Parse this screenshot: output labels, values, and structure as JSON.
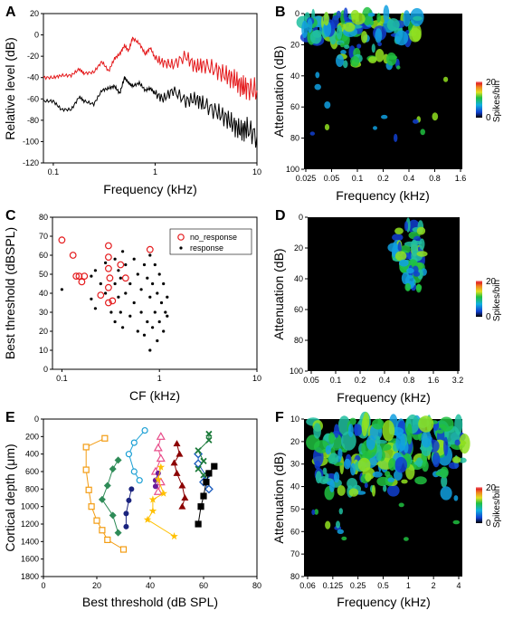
{
  "panels": {
    "A": {
      "label": "A",
      "ylabel": "Relative level  (dB)",
      "xlabel": "Frequency  (kHz)",
      "yticks": [
        "20",
        "0",
        "-20",
        "-40",
        "-60",
        "-80",
        "-100",
        "-120"
      ],
      "xticks": [
        "0.1",
        "1",
        "10"
      ]
    },
    "B": {
      "label": "B",
      "ylabel": "Attenuation (dB)",
      "xlabel": "Frequency  (kHz)",
      "yticks": [
        "0",
        "20",
        "40",
        "60",
        "80",
        "100"
      ],
      "xticks": [
        "0.025",
        "0.05",
        "0.1",
        "0.2",
        "0.4",
        "0.8",
        "1.6"
      ]
    },
    "C": {
      "label": "C",
      "ylabel": "Best threshold (dBSPL)",
      "xlabel": "CF (kHz)",
      "yticks": [
        "80",
        "70",
        "60",
        "50",
        "40",
        "30",
        "20",
        "10",
        "0"
      ],
      "xticks": [
        "0.1",
        "1",
        "10"
      ],
      "legend": {
        "no_response": "no_response",
        "response": "response"
      }
    },
    "D": {
      "label": "D",
      "ylabel": "Attenuation (dB)",
      "xlabel": "Frequency (kHz)",
      "yticks": [
        "0",
        "20",
        "40",
        "60",
        "80",
        "100"
      ],
      "xticks": [
        "0.05",
        "0.1",
        "0.2",
        "0.4",
        "0.8",
        "1.6",
        "3.2"
      ]
    },
    "E": {
      "label": "E",
      "ylabel": "Cortical depth (μm)",
      "xlabel": "Best threshold (dB SPL)",
      "yticks": [
        "0",
        "200",
        "400",
        "600",
        "800",
        "1000",
        "1200",
        "1400",
        "1600",
        "1800"
      ],
      "xticks": [
        "0",
        "20",
        "40",
        "60",
        "80"
      ]
    },
    "F": {
      "label": "F",
      "ylabel": "Attenuation (dB)",
      "xlabel": "Frequency (kHz)",
      "yticks": [
        "10",
        "20",
        "30",
        "40",
        "50",
        "60",
        "70",
        "80"
      ],
      "xticks": [
        "0.06",
        "0.125",
        "0.25",
        "0.5",
        "1",
        "2",
        "4"
      ]
    }
  },
  "colorbar": {
    "max": "20",
    "min": "0",
    "label": "Spikes/bin"
  },
  "colors": {
    "red_trace": "#e41a1c",
    "black_trace": "#000000",
    "heat_bg": "#000000"
  },
  "chart_data": [
    {
      "type": "line",
      "panel": "A",
      "xscale": "log",
      "xlim": [
        0.08,
        10
      ],
      "ylim": [
        -120,
        20
      ],
      "x": [
        0.08,
        0.1,
        0.12,
        0.15,
        0.18,
        0.2,
        0.25,
        0.3,
        0.35,
        0.4,
        0.45,
        0.5,
        0.55,
        0.6,
        0.7,
        0.8,
        0.9,
        1,
        1.2,
        1.5,
        2,
        2.5,
        3,
        4,
        5,
        6,
        7,
        8,
        10
      ],
      "series": [
        {
          "color": "red",
          "values": [
            -40,
            -40,
            -38,
            -38,
            -32,
            -36,
            -35,
            -25,
            -34,
            -22,
            -18,
            -10,
            -15,
            -3,
            -8,
            -18,
            -12,
            -22,
            -26,
            -28,
            -20,
            -30,
            -28,
            -33,
            -38,
            -42,
            -48,
            -50,
            -52
          ]
        },
        {
          "color": "black",
          "values": [
            -62,
            -62,
            -70,
            -70,
            -58,
            -62,
            -65,
            -52,
            -50,
            -48,
            -55,
            -40,
            -45,
            -48,
            -45,
            -52,
            -50,
            -55,
            -60,
            -52,
            -62,
            -60,
            -65,
            -72,
            -78,
            -85,
            -90,
            -88,
            -95
          ]
        }
      ]
    },
    {
      "type": "heatmap",
      "panel": "B",
      "xlabel": "Frequency  (kHz)",
      "ylabel": "Attenuation (dB)",
      "scale": [
        0,
        20
      ]
    },
    {
      "type": "scatter",
      "panel": "C",
      "xscale": "log",
      "xlim": [
        0.08,
        10
      ],
      "ylim": [
        0,
        80
      ],
      "series": [
        {
          "name": "no_response",
          "marker": "open-circle",
          "points": [
            [
              0.1,
              68
            ],
            [
              0.13,
              60
            ],
            [
              0.14,
              49
            ],
            [
              0.16,
              46
            ],
            [
              0.17,
              49
            ],
            [
              0.15,
              49
            ],
            [
              0.3,
              65
            ],
            [
              0.3,
              59
            ],
            [
              0.3,
              53
            ],
            [
              0.31,
              48
            ],
            [
              0.3,
              43
            ],
            [
              0.3,
              35
            ],
            [
              0.33,
              36
            ],
            [
              0.25,
              39
            ],
            [
              0.4,
              55
            ],
            [
              0.45,
              48
            ],
            [
              0.8,
              63
            ]
          ]
        },
        {
          "name": "response",
          "marker": "dot",
          "points": [
            [
              0.1,
              42
            ],
            [
              0.2,
              49
            ],
            [
              0.2,
              37
            ],
            [
              0.22,
              52
            ],
            [
              0.22,
              32
            ],
            [
              0.25,
              45
            ],
            [
              0.28,
              56
            ],
            [
              0.28,
              40
            ],
            [
              0.32,
              30
            ],
            [
              0.35,
              58
            ],
            [
              0.35,
              45
            ],
            [
              0.35,
              25
            ],
            [
              0.38,
              52
            ],
            [
              0.38,
              38
            ],
            [
              0.4,
              48
            ],
            [
              0.4,
              30
            ],
            [
              0.42,
              62
            ],
            [
              0.42,
              22
            ],
            [
              0.45,
              55
            ],
            [
              0.45,
              40
            ],
            [
              0.5,
              45
            ],
            [
              0.5,
              28
            ],
            [
              0.55,
              58
            ],
            [
              0.55,
              35
            ],
            [
              0.6,
              50
            ],
            [
              0.6,
              20
            ],
            [
              0.65,
              42
            ],
            [
              0.65,
              30
            ],
            [
              0.7,
              55
            ],
            [
              0.7,
              18
            ],
            [
              0.75,
              48
            ],
            [
              0.75,
              25
            ],
            [
              0.8,
              60
            ],
            [
              0.8,
              38
            ],
            [
              0.8,
              10
            ],
            [
              0.85,
              45
            ],
            [
              0.85,
              22
            ],
            [
              0.9,
              55
            ],
            [
              0.9,
              30
            ],
            [
              0.95,
              40
            ],
            [
              0.95,
              15
            ],
            [
              1.0,
              50
            ],
            [
              1.0,
              25
            ],
            [
              1.05,
              35
            ],
            [
              1.1,
              45
            ],
            [
              1.1,
              20
            ],
            [
              1.15,
              30
            ],
            [
              1.2,
              38
            ],
            [
              1.2,
              28
            ]
          ]
        }
      ]
    },
    {
      "type": "heatmap",
      "panel": "D",
      "xlabel": "Frequency (kHz)",
      "ylabel": "Attenuation (dB)",
      "scale": [
        0,
        20
      ]
    },
    {
      "type": "line",
      "panel": "E",
      "xlim": [
        0,
        80
      ],
      "ylim": [
        1800,
        0
      ],
      "series": [
        {
          "color": "#f39c12",
          "marker": "square",
          "points": [
            [
              23,
              220
            ],
            [
              16,
              320
            ],
            [
              16,
              580
            ],
            [
              17,
              810
            ],
            [
              18,
              1000
            ],
            [
              20,
              1160
            ],
            [
              22,
              1270
            ],
            [
              24,
              1380
            ],
            [
              30,
              1490
            ]
          ]
        },
        {
          "color": "#2e8b57",
          "marker": "diamond",
          "points": [
            [
              28,
              470
            ],
            [
              26,
              570
            ],
            [
              24,
              760
            ],
            [
              22,
              920
            ],
            [
              26,
              1100
            ],
            [
              28,
              1300
            ]
          ]
        },
        {
          "color": "#1a9fd4",
          "marker": "open-circle",
          "points": [
            [
              38,
              130
            ],
            [
              34,
              270
            ],
            [
              32,
              400
            ],
            [
              34,
              600
            ],
            [
              36,
              700
            ]
          ]
        },
        {
          "color": "#1a237e",
          "marker": "dot",
          "points": [
            [
              33,
              800
            ],
            [
              32,
              930
            ],
            [
              31,
              1080
            ],
            [
              31,
              1230
            ]
          ]
        },
        {
          "color": "#e84d8a",
          "marker": "open-triangle",
          "points": [
            [
              44,
              200
            ],
            [
              43,
              330
            ],
            [
              44,
              450
            ],
            [
              42,
              600
            ],
            [
              44,
              720
            ],
            [
              43,
              830
            ]
          ]
        },
        {
          "color": "#6a1b9a",
          "marker": "dot",
          "points": [
            [
              43,
              620
            ],
            [
              42,
              700
            ],
            [
              42,
              770
            ]
          ]
        },
        {
          "color": "#ffc000",
          "marker": "star",
          "points": [
            [
              44,
              550
            ],
            [
              43,
              690
            ],
            [
              45,
              850
            ],
            [
              41,
              920
            ],
            [
              41,
              1050
            ],
            [
              39,
              1150
            ],
            [
              49,
              1340
            ]
          ]
        },
        {
          "color": "#8b0000",
          "marker": "triangle",
          "points": [
            [
              50,
              280
            ],
            [
              51,
              400
            ],
            [
              49,
              500
            ],
            [
              50,
              620
            ],
            [
              52,
              760
            ],
            [
              53,
              900
            ],
            [
              52,
              1000
            ]
          ]
        },
        {
          "color": "#1f5fbf",
          "marker": "open-diamond",
          "points": [
            [
              58,
              400
            ],
            [
              58,
              510
            ],
            [
              61,
              650
            ],
            [
              60,
              720
            ],
            [
              62,
              800
            ]
          ]
        },
        {
          "color": "#1b7a3a",
          "marker": "x",
          "points": [
            [
              62,
              170
            ],
            [
              62,
              240
            ],
            [
              58,
              360
            ],
            [
              60,
              480
            ],
            [
              58,
              570
            ],
            [
              60,
              640
            ]
          ]
        },
        {
          "color": "#000000",
          "marker": "square",
          "points": [
            [
              64,
              540
            ],
            [
              62,
              620
            ],
            [
              61,
              720
            ],
            [
              60,
              880
            ],
            [
              59,
              1000
            ],
            [
              58,
              1200
            ]
          ]
        }
      ]
    },
    {
      "type": "heatmap",
      "panel": "F",
      "xlabel": "Frequency (kHz)",
      "ylabel": "Attenuation (dB)",
      "scale": [
        0,
        20
      ]
    }
  ]
}
